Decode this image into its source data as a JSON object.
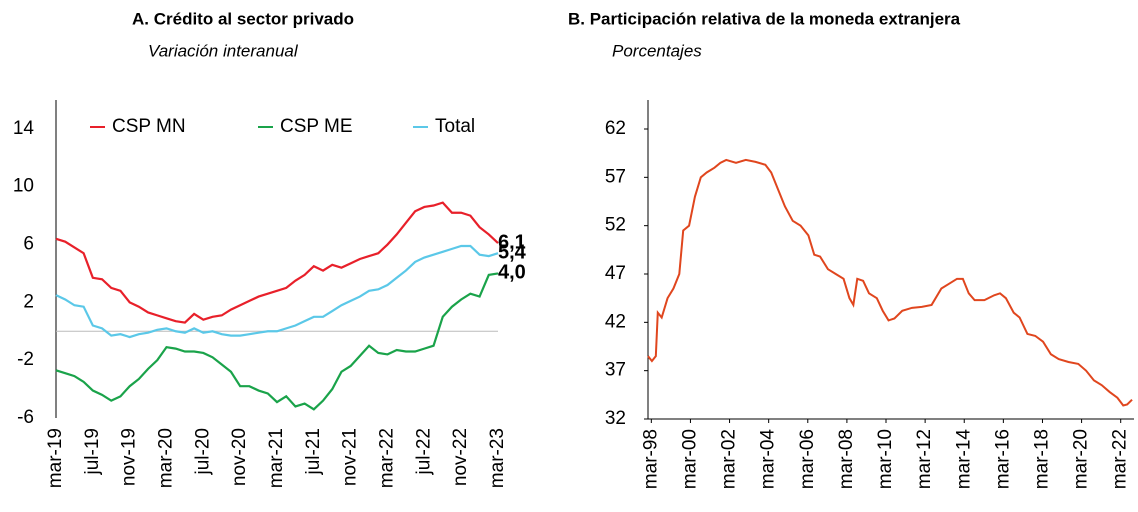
{
  "chart_data": [
    {
      "type": "line",
      "title": "A. Crédito al sector privado",
      "subtitle": "Variación interanual",
      "categories": [
        "mar-19",
        null,
        null,
        null,
        "jul-19",
        null,
        null,
        null,
        "nov-19",
        null,
        null,
        null,
        "mar-20",
        null,
        null,
        null,
        "jul-20",
        null,
        null,
        null,
        "nov-20",
        null,
        null,
        null,
        "mar-21",
        null,
        null,
        null,
        "jul-21",
        null,
        null,
        null,
        "nov-21",
        null,
        null,
        null,
        "mar-22",
        null,
        null,
        null,
        "jul-22",
        null,
        null,
        null,
        "nov-22",
        null,
        null,
        null,
        "mar-23"
      ],
      "series": [
        {
          "name": "CSP MN",
          "color": "#e8202a",
          "values": [
            6.4,
            6.2,
            5.8,
            5.4,
            3.7,
            3.6,
            3.0,
            2.8,
            2.0,
            1.7,
            1.3,
            1.1,
            0.9,
            0.7,
            0.6,
            1.2,
            0.8,
            1.0,
            1.1,
            1.5,
            1.8,
            2.1,
            2.4,
            2.6,
            2.8,
            3.0,
            3.5,
            3.9,
            4.5,
            4.2,
            4.6,
            4.4,
            4.7,
            5.0,
            5.2,
            5.4,
            6.0,
            6.7,
            7.5,
            8.3,
            8.6,
            8.7,
            8.9,
            8.2,
            8.2,
            8.0,
            7.2,
            6.7,
            6.1
          ]
        },
        {
          "name": "CSP ME",
          "color": "#1aa34a",
          "values": [
            -2.7,
            -2.9,
            -3.1,
            -3.5,
            -4.1,
            -4.4,
            -4.8,
            -4.5,
            -3.8,
            -3.3,
            -2.6,
            -2.0,
            -1.1,
            -1.2,
            -1.4,
            -1.4,
            -1.5,
            -1.8,
            -2.3,
            -2.8,
            -3.8,
            -3.8,
            -4.1,
            -4.3,
            -4.9,
            -4.5,
            -5.2,
            -5.0,
            -5.4,
            -4.8,
            -4.0,
            -2.8,
            -2.4,
            -1.7,
            -1.0,
            -1.5,
            -1.6,
            -1.3,
            -1.4,
            -1.4,
            -1.2,
            -1.0,
            1.0,
            1.7,
            2.2,
            2.6,
            2.4,
            3.9,
            4.0
          ]
        },
        {
          "name": "Total",
          "color": "#5bc8e8",
          "values": [
            2.5,
            2.2,
            1.8,
            1.7,
            0.4,
            0.2,
            -0.3,
            -0.2,
            -0.4,
            -0.2,
            -0.1,
            0.1,
            0.2,
            0.0,
            -0.1,
            0.2,
            -0.1,
            0.0,
            -0.2,
            -0.3,
            -0.3,
            -0.2,
            -0.1,
            0.0,
            0.0,
            0.2,
            0.4,
            0.7,
            1.0,
            1.0,
            1.4,
            1.8,
            2.1,
            2.4,
            2.8,
            2.9,
            3.2,
            3.7,
            4.2,
            4.8,
            5.1,
            5.3,
            5.5,
            5.7,
            5.9,
            5.9,
            5.3,
            5.2,
            5.4
          ]
        }
      ],
      "ylim": [
        -6,
        16
      ],
      "yticks": [
        -6,
        -2,
        2,
        6,
        10,
        14
      ],
      "zero_line": true,
      "legend": "top",
      "annotations": [
        {
          "text": "6,1",
          "y": 6.1,
          "color": "#e8202a"
        },
        {
          "text": "5,4",
          "y": 5.4,
          "color": "#4fd6e6"
        },
        {
          "text": "4,0",
          "y": 4.0,
          "color": "#1aa34a"
        }
      ]
    },
    {
      "type": "line",
      "title": "B. Participación relativa de la moneda extranjera",
      "subtitle": "Porcentajes",
      "x": [
        1998.0,
        1998.2,
        1998.4,
        1998.5,
        1998.7,
        1999.0,
        1999.3,
        1999.6,
        1999.8,
        2000.1,
        2000.4,
        2000.7,
        2001.0,
        2001.4,
        2001.7,
        2002.0,
        2002.5,
        2003.0,
        2003.5,
        2004.0,
        2004.3,
        2004.7,
        2005.0,
        2005.4,
        2005.8,
        2006.2,
        2006.5,
        2006.8,
        2007.2,
        2007.6,
        2008.0,
        2008.3,
        2008.5,
        2008.7,
        2009.0,
        2009.3,
        2009.7,
        2010.0,
        2010.3,
        2010.6,
        2011.0,
        2011.5,
        2012.0,
        2012.5,
        2013.0,
        2013.4,
        2013.8,
        2014.1,
        2014.4,
        2014.7,
        2015.2,
        2015.7,
        2016.0,
        2016.3,
        2016.7,
        2017.0,
        2017.4,
        2017.8,
        2018.2,
        2018.6,
        2019.0,
        2019.5,
        2020.0,
        2020.4,
        2020.8,
        2021.2,
        2021.6,
        2022.0,
        2022.3,
        2022.5,
        2022.75
      ],
      "series": [
        {
          "name": "Participación",
          "color": "#e0461e",
          "values": [
            38.5,
            38.0,
            38.5,
            43,
            42.5,
            44.5,
            45.5,
            47,
            51.5,
            52,
            55,
            57,
            57.5,
            58,
            58.5,
            58.8,
            58.5,
            58.8,
            58.6,
            58.3,
            57.5,
            55.5,
            54,
            52.5,
            52,
            51,
            49,
            48.8,
            47.5,
            47,
            46.5,
            44.5,
            43.8,
            46.5,
            46.3,
            45,
            44.5,
            43.2,
            42.2,
            42.4,
            43.2,
            43.5,
            43.6,
            43.8,
            45.5,
            46,
            46.5,
            46.5,
            45,
            44.3,
            44.3,
            44.8,
            45,
            44.5,
            43,
            42.5,
            40.8,
            40.6,
            40,
            38.7,
            38.2,
            37.9,
            37.7,
            37,
            36,
            35.5,
            34.8,
            34.2,
            33.4,
            33.5,
            34.0
          ]
        }
      ],
      "xlim": [
        1998.0,
        2022.85
      ],
      "ylim": [
        32,
        65
      ],
      "yticks": [
        32,
        37,
        42,
        47,
        52,
        57,
        62
      ],
      "xticks": [
        {
          "value": 1998.17,
          "label": "mar-98"
        },
        {
          "value": 2000.17,
          "label": "mar-00"
        },
        {
          "value": 2002.17,
          "label": "mar-02"
        },
        {
          "value": 2004.17,
          "label": "mar-04"
        },
        {
          "value": 2006.17,
          "label": "mar-06"
        },
        {
          "value": 2008.17,
          "label": "mar-08"
        },
        {
          "value": 2010.17,
          "label": "mar-10"
        },
        {
          "value": 2012.17,
          "label": "mar-12"
        },
        {
          "value": 2014.17,
          "label": "mar-14"
        },
        {
          "value": 2016.17,
          "label": "mar-16"
        },
        {
          "value": 2018.17,
          "label": "mar-18"
        },
        {
          "value": 2020.17,
          "label": "mar-20"
        },
        {
          "value": 2022.17,
          "label": "mar-22"
        }
      ]
    }
  ]
}
